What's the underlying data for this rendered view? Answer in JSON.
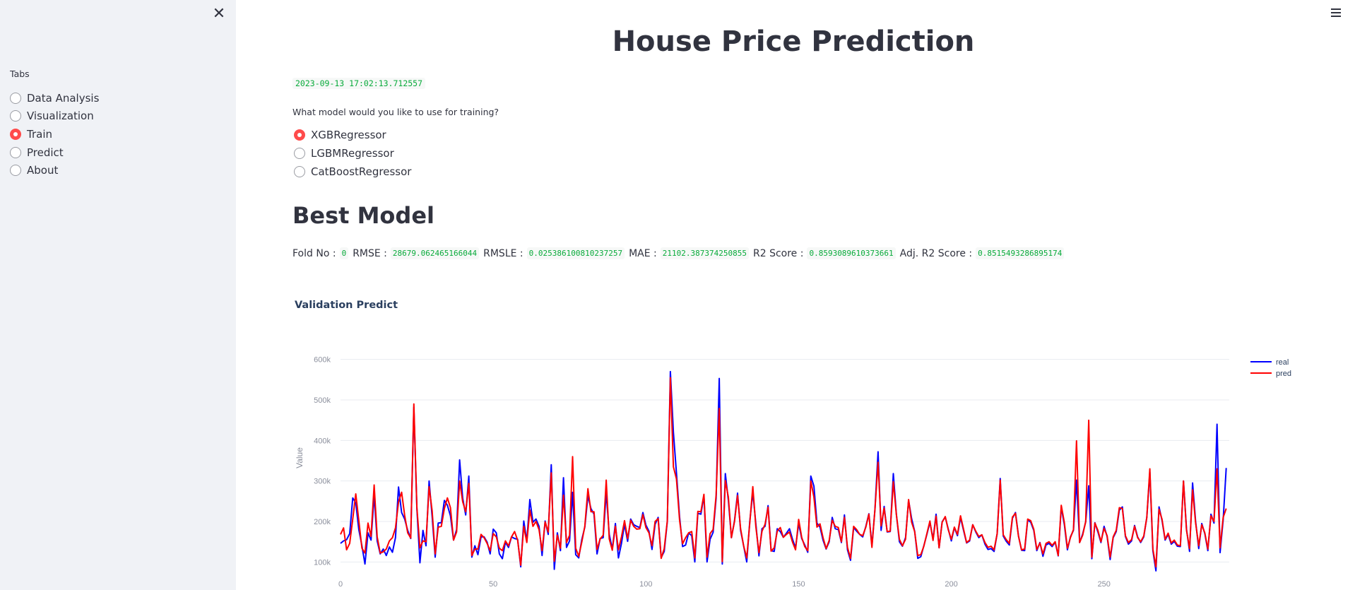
{
  "sidebar": {
    "close_icon": "close-icon",
    "tabs_label": "Tabs",
    "items": [
      {
        "label": "Data Analysis",
        "selected": false
      },
      {
        "label": "Visualization",
        "selected": false
      },
      {
        "label": "Train",
        "selected": true
      },
      {
        "label": "Predict",
        "selected": false
      },
      {
        "label": "About",
        "selected": false
      }
    ]
  },
  "header": {
    "menu_icon": "hamburger-menu-icon"
  },
  "main": {
    "title": "House Price Prediction",
    "timestamp": "2023-09-13 17:02:13.712557",
    "question": "What model would you like to use for training?",
    "models": [
      {
        "label": "XGBRegressor",
        "selected": true
      },
      {
        "label": "LGBMRegressor",
        "selected": false
      },
      {
        "label": "CatBoostRegressor",
        "selected": false
      }
    ],
    "section_title": "Best Model",
    "metrics": [
      {
        "label": "Fold No :",
        "value": "0"
      },
      {
        "label": "RMSE :",
        "value": "28679.062465166044"
      },
      {
        "label": "RMSLE :",
        "value": "0.025386100810237257"
      },
      {
        "label": "MAE :",
        "value": "21102.387374250855"
      },
      {
        "label": "R2 Score :",
        "value": "0.8593089610373661"
      },
      {
        "label": "Adj. R2 Score :",
        "value": "0.8515493286895174"
      }
    ]
  },
  "colors": {
    "accent": "#ff4b4b",
    "code": "#09ab3b",
    "real": "#0000ff",
    "pred": "#ff0000"
  },
  "chart_data": {
    "type": "line",
    "title": "Validation Predict",
    "xlabel": "",
    "ylabel": "Value",
    "xlim": [
      0,
      291
    ],
    "ylim": [
      50000,
      650000
    ],
    "x_ticks": [
      0,
      50,
      100,
      150,
      200,
      250
    ],
    "x_tick_labels": [
      "0",
      "50",
      "100",
      "150",
      "200",
      "250"
    ],
    "y_ticks": [
      100000,
      200000,
      300000,
      400000,
      500000,
      600000
    ],
    "y_tick_labels": [
      "100k",
      "200k",
      "300k",
      "400k",
      "500k",
      "600k"
    ],
    "legend_position": "top-right",
    "series": [
      {
        "name": "real",
        "color": "#0000ff",
        "values": [
          146000,
          152000,
          155000,
          170000,
          258000,
          246000,
          180000,
          140000,
          95000,
          172000,
          154000,
          265000,
          152000,
          120000,
          132000,
          116000,
          137000,
          124000,
          160000,
          285000,
          222000,
          206000,
          178000,
          158000,
          482000,
          232000,
          98000,
          178000,
          140000,
          300000,
          212000,
          112000,
          196000,
          197000,
          252000,
          240000,
          214000,
          154000,
          180000,
          352000,
          258000,
          216000,
          312000,
          112000,
          140000,
          118000,
          162000,
          162000,
          149000,
          120000,
          181000,
          172000,
          120000,
          108000,
          149000,
          136000,
          162000,
          158000,
          156000,
          88000,
          201000,
          151000,
          254000,
          198000,
          206000,
          188000,
          116000,
          201000,
          168000,
          340000,
          82000,
          172000,
          128000,
          308000,
          136000,
          152000,
          272000,
          118000,
          110000,
          155000,
          186000,
          263000,
          232000,
          218000,
          120000,
          158000,
          160000,
          272000,
          168000,
          132000,
          195000,
          110000,
          146000,
          193000,
          151000,
          206000,
          192000,
          188000,
          185000,
          222000,
          191000,
          176000,
          131000,
          193000,
          210000,
          111000,
          126000,
          200000,
          570000,
          420000,
          320000,
          212000,
          138000,
          142000,
          172000,
          165000,
          100000,
          220000,
          218000,
          263000,
          100000,
          156000,
          173000,
          258000,
          553000,
          95000,
          318000,
          252000,
          160000,
          202000,
          270000,
          178000,
          140000,
          100000,
          200000,
          272000,
          194000,
          115000,
          182000,
          188000,
          239000,
          128000,
          126000,
          182000,
          175000,
          161000,
          171000,
          182000,
          156000,
          135000,
          195000,
          158000,
          142000,
          124000,
          312000,
          287000,
          196000,
          186000,
          154000,
          132000,
          150000,
          210000,
          182000,
          180000,
          148000,
          216000,
          130000,
          104000,
          185000,
          176000,
          168000,
          162000,
          188000,
          219000,
          140000,
          230000,
          372000,
          178000,
          237000,
          174000,
          175000,
          318000,
          218000,
          150000,
          139000,
          160000,
          252000,
          207000,
          176000,
          109000,
          113000,
          140000,
          168000,
          198000,
          156000,
          218000,
          135000,
          199000,
          211000,
          181000,
          152000,
          185000,
          165000,
          210000,
          178000,
          147000,
          152000,
          192000,
          174000,
          160000,
          167000,
          144000,
          131000,
          133000,
          126000,
          170000,
          306000,
          164000,
          151000,
          142000,
          208000,
          222000,
          164000,
          129000,
          128000,
          204000,
          198000,
          178000,
          128000,
          148000,
          114000,
          142000,
          146000,
          138000,
          149000,
          115000,
          235000,
          192000,
          130000,
          162000,
          178000,
          302000,
          148000,
          169000,
          199000,
          288000,
          108000,
          197000,
          174000,
          148000,
          188000,
          163000,
          106000,
          160000,
          175000,
          228000,
          236000,
          163000,
          144000,
          152000,
          190000,
          162000,
          148000,
          162000,
          210000,
          322000,
          128000,
          78000,
          236000,
          202000,
          154000,
          168000,
          144000,
          151000,
          139000,
          138000,
          300000,
          181000,
          126000,
          295000,
          200000,
          133000,
          195000,
          170000,
          128000,
          218000,
          196000,
          440000,
          123000,
          204000,
          332000
        ]
      },
      {
        "name": "pred",
        "color": "#ff0000",
        "values": [
          168000,
          184000,
          130000,
          146000,
          206000,
          268000,
          202000,
          134000,
          122000,
          196000,
          163000,
          290000,
          162000,
          122000,
          125000,
          132000,
          152000,
          160000,
          184000,
          248000,
          272000,
          215000,
          172000,
          159000,
          490000,
          234000,
          135000,
          152000,
          150000,
          286000,
          226000,
          120000,
          186000,
          188000,
          232000,
          258000,
          234000,
          154000,
          174000,
          300000,
          249000,
          224000,
          294000,
          116000,
          132000,
          132000,
          168000,
          160000,
          146000,
          128000,
          170000,
          162000,
          134000,
          128000,
          152000,
          140000,
          162000,
          175000,
          154000,
          92000,
          188000,
          148000,
          228000,
          188000,
          200000,
          180000,
          128000,
          199000,
          174000,
          320000,
          102000,
          166000,
          134000,
          265000,
          148000,
          166000,
          360000,
          134000,
          114000,
          149000,
          188000,
          281000,
          224000,
          224000,
          131000,
          157000,
          166000,
          302000,
          157000,
          129000,
          188000,
          130000,
          162000,
          202000,
          158000,
          203000,
          188000,
          181000,
          182000,
          217000,
          185000,
          172000,
          140000,
          200000,
          207000,
          109000,
          133000,
          202000,
          555000,
          335000,
          305000,
          204000,
          145000,
          160000,
          172000,
          175000,
          110000,
          225000,
          224000,
          267000,
          112000,
          170000,
          180000,
          266000,
          479000,
          101000,
          301000,
          260000,
          160000,
          200000,
          264000,
          182000,
          140000,
          110000,
          196000,
          286000,
          187000,
          123000,
          176000,
          193000,
          235000,
          127000,
          135000,
          176000,
          185000,
          161000,
          168000,
          174000,
          149000,
          130000,
          205000,
          161000,
          138000,
          128000,
          300000,
          260000,
          186000,
          194000,
          160000,
          133000,
          153000,
          203000,
          188000,
          185000,
          150000,
          210000,
          136000,
          109000,
          188000,
          180000,
          168000,
          165000,
          186000,
          218000,
          136000,
          230000,
          346000,
          189000,
          233000,
          175000,
          176000,
          298000,
          217000,
          156000,
          140000,
          156000,
          254000,
          198000,
          175000,
          116000,
          118000,
          139000,
          170000,
          201000,
          153000,
          213000,
          135000,
          198000,
          212000,
          179000,
          156000,
          186000,
          168000,
          214000,
          181000,
          148000,
          154000,
          192000,
          176000,
          163000,
          167000,
          148000,
          136000,
          139000,
          130000,
          170000,
          302000,
          167000,
          155000,
          146000,
          211000,
          220000,
          163000,
          130000,
          132000,
          206000,
          202000,
          181000,
          131000,
          147000,
          120000,
          146000,
          150000,
          141000,
          150000,
          116000,
          240000,
          197000,
          134000,
          160000,
          180000,
          399000,
          148000,
          166000,
          200000,
          450000,
          112000,
          196000,
          178000,
          150000,
          183000,
          165000,
          112000,
          162000,
          178000,
          234000,
          232000,
          165000,
          148000,
          155000,
          188000,
          160000,
          150000,
          164000,
          210000,
          330000,
          132000,
          88000,
          230000,
          205000,
          156000,
          171000,
          147000,
          154000,
          142000,
          140000,
          300000,
          178000,
          133000,
          278000,
          196000,
          140000,
          192000,
          172000,
          132000,
          214000,
          200000,
          330000,
          135000,
          210000,
          232000
        ]
      }
    ]
  }
}
